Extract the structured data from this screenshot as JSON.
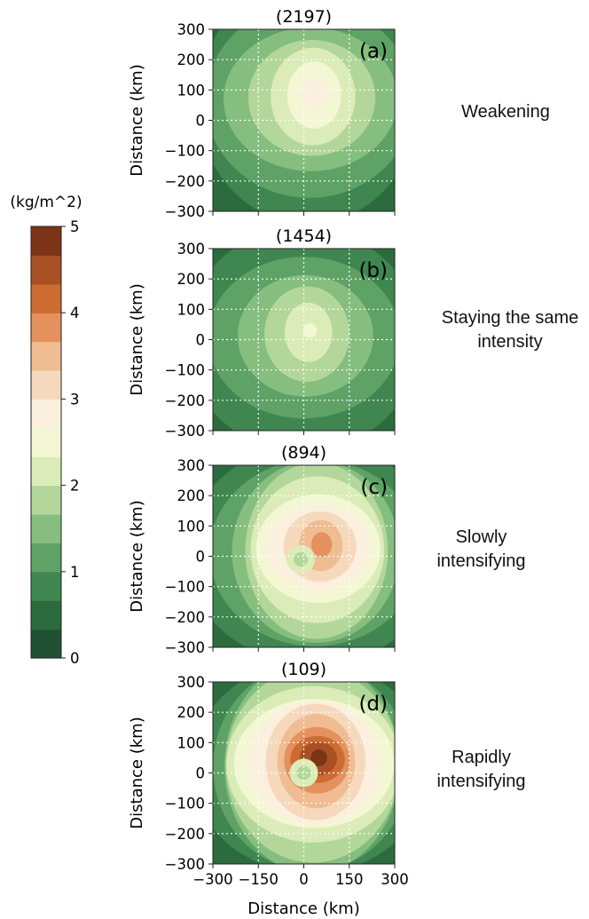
{
  "chart_data": {
    "type": "heatmap",
    "colorbar": {
      "unit_label": "(kg/m^2)",
      "range": [
        0,
        5
      ],
      "ticks": [
        "0",
        "1",
        "2",
        "3",
        "4",
        "5"
      ],
      "colors": [
        "#1f5132",
        "#2c6b3e",
        "#3f8650",
        "#5ea266",
        "#86be7f",
        "#b3d79a",
        "#dbecb8",
        "#f4f7d4",
        "#fbefdd",
        "#f6d9bd",
        "#f0bc91",
        "#e4915d",
        "#cc6b32",
        "#a84f24",
        "#7c3416"
      ]
    },
    "xlabel": "Distance (km)",
    "ylabel": "Distance (km)",
    "xlim": [
      -300,
      300
    ],
    "ylim": [
      -300,
      300
    ],
    "x_ticks": [
      "−300",
      "−150",
      "0",
      "150",
      "300"
    ],
    "y_ticks": [
      "300",
      "200",
      "100",
      "0",
      "−100",
      "−200",
      "−300"
    ],
    "grid": true,
    "panels": [
      {
        "count": "(2197)",
        "tag": "(a)",
        "category": "Weakening",
        "peak_value": 2.9,
        "max_center_km": [
          40,
          90
        ],
        "eye_km": null
      },
      {
        "count": "(1454)",
        "tag": "(b)",
        "category": "Staying the same intensity",
        "peak_value": 2.4,
        "max_center_km": [
          20,
          30
        ],
        "eye_km": null
      },
      {
        "count": "(894)",
        "tag": "(c)",
        "category": "Slowly intensifying",
        "peak_value": 3.9,
        "max_center_km": [
          60,
          40
        ],
        "eye_km": [
          -10,
          -10
        ]
      },
      {
        "count": "(109)",
        "tag": "(d)",
        "category": "Rapidly intensifying",
        "peak_value": 4.8,
        "max_center_km": [
          50,
          50
        ],
        "eye_km": [
          0,
          0
        ]
      }
    ]
  }
}
